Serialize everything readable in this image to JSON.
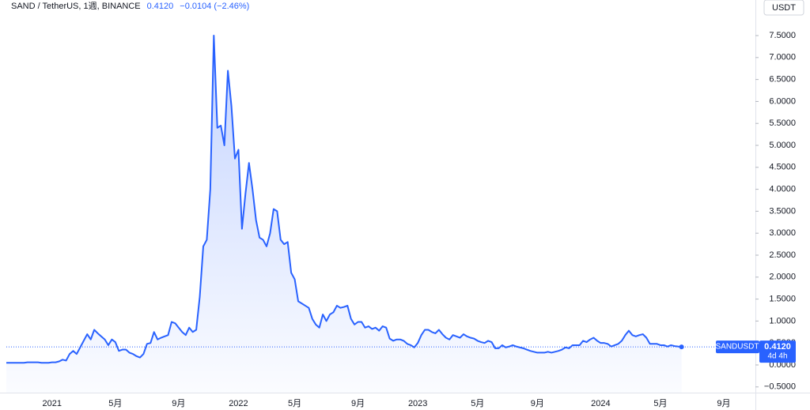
{
  "chart_data": {
    "type": "area",
    "title": "SAND / TetherUS, 1週, BINANCE",
    "last_price": "0.4120",
    "change": "−0.0104 (−2.46%)",
    "currency": "USDT",
    "countdown": "4d 4h",
    "grid": false,
    "series": [
      {
        "name": "SANDUSDT",
        "color": "#2962ff",
        "values": [
          0.05,
          0.05,
          0.05,
          0.05,
          0.05,
          0.05,
          0.06,
          0.06,
          0.06,
          0.06,
          0.05,
          0.05,
          0.05,
          0.06,
          0.06,
          0.08,
          0.12,
          0.1,
          0.25,
          0.32,
          0.25,
          0.4,
          0.55,
          0.7,
          0.58,
          0.8,
          0.72,
          0.65,
          0.58,
          0.45,
          0.58,
          0.52,
          0.32,
          0.35,
          0.35,
          0.28,
          0.25,
          0.2,
          0.17,
          0.25,
          0.48,
          0.5,
          0.75,
          0.58,
          0.62,
          0.65,
          0.68,
          0.98,
          0.95,
          0.85,
          0.75,
          0.68,
          0.85,
          0.75,
          0.8,
          1.55,
          2.7,
          2.85,
          4.0,
          7.5,
          5.4,
          5.45,
          5.0,
          6.7,
          5.9,
          4.7,
          4.9,
          3.1,
          3.9,
          4.6,
          4.0,
          3.3,
          2.9,
          2.85,
          2.7,
          3.0,
          3.55,
          3.5,
          2.85,
          2.75,
          2.8,
          2.1,
          1.95,
          1.45,
          1.4,
          1.35,
          1.3,
          1.05,
          0.92,
          0.85,
          1.15,
          1.0,
          1.15,
          1.2,
          1.35,
          1.3,
          1.32,
          1.35,
          1.05,
          0.92,
          0.98,
          0.98,
          0.85,
          0.88,
          0.82,
          0.85,
          0.78,
          0.88,
          0.85,
          0.6,
          0.55,
          0.58,
          0.58,
          0.55,
          0.48,
          0.45,
          0.4,
          0.5,
          0.68,
          0.8,
          0.8,
          0.75,
          0.72,
          0.8,
          0.7,
          0.62,
          0.58,
          0.68,
          0.65,
          0.62,
          0.7,
          0.65,
          0.62,
          0.6,
          0.55,
          0.52,
          0.5,
          0.55,
          0.52,
          0.38,
          0.38,
          0.45,
          0.4,
          0.42,
          0.45,
          0.42,
          0.4,
          0.38,
          0.35,
          0.32,
          0.3,
          0.28,
          0.28,
          0.28,
          0.3,
          0.28,
          0.3,
          0.32,
          0.35,
          0.4,
          0.38,
          0.45,
          0.45,
          0.45,
          0.55,
          0.52,
          0.58,
          0.62,
          0.55,
          0.5,
          0.5,
          0.48,
          0.42,
          0.45,
          0.48,
          0.55,
          0.68,
          0.78,
          0.68,
          0.65,
          0.68,
          0.7,
          0.62,
          0.48,
          0.48,
          0.48,
          0.45,
          0.45,
          0.42,
          0.45,
          0.43,
          0.42,
          0.412,
          null,
          null,
          null,
          null,
          null,
          null,
          null,
          null,
          null,
          null,
          null,
          null,
          null,
          null,
          null,
          null,
          null,
          null,
          null,
          null
        ]
      }
    ],
    "categories": [
      null,
      null,
      null,
      null,
      null,
      null,
      null,
      null,
      null,
      null,
      null,
      null,
      null,
      "2021",
      null,
      null,
      null,
      null,
      null,
      null,
      null,
      null,
      null,
      null,
      null,
      null,
      null,
      null,
      null,
      null,
      null,
      "5月",
      null,
      null,
      null,
      null,
      null,
      null,
      null,
      null,
      null,
      null,
      null,
      null,
      null,
      null,
      null,
      null,
      null,
      "9月",
      null,
      null,
      null,
      null,
      null,
      null,
      null,
      null,
      null,
      null,
      null,
      null,
      null,
      null,
      null,
      null,
      "2022",
      null,
      null,
      null,
      null,
      null,
      null,
      null,
      null,
      null,
      null,
      null,
      null,
      null,
      null,
      null,
      "5月",
      null,
      null,
      null,
      null,
      null,
      null,
      null,
      null,
      null,
      null,
      null,
      null,
      null,
      null,
      null,
      null,
      null,
      "9月",
      null,
      null,
      null,
      null,
      null,
      null,
      null,
      null,
      null,
      null,
      null,
      null,
      null,
      null,
      null,
      null,
      "2023",
      null,
      null,
      null,
      null,
      null,
      null,
      null,
      null,
      null,
      null,
      null,
      null,
      null,
      null,
      null,
      null,
      "5月",
      null,
      null,
      null,
      null,
      null,
      null,
      null,
      null,
      null,
      null,
      null,
      null,
      null,
      null,
      null,
      null,
      "9月",
      null,
      null,
      null,
      null,
      null,
      null,
      null,
      null,
      null,
      null,
      null,
      null,
      null,
      null,
      null,
      null,
      null,
      "2024",
      null,
      null,
      null,
      null,
      null,
      null,
      null,
      null,
      null,
      null,
      null,
      null,
      null,
      null,
      null,
      null,
      "5月",
      null,
      null,
      null,
      null,
      null,
      null,
      null,
      null,
      null,
      null,
      null,
      null,
      null,
      null,
      null,
      null,
      null,
      "9月",
      null,
      null,
      null,
      null,
      null,
      null,
      null,
      null
    ],
    "ylim": [
      -0.63,
      8.31
    ],
    "yticks": [
      {
        "value": -0.5,
        "label": "−0.5000"
      },
      {
        "value": 0,
        "label": "0.0000"
      },
      {
        "value": 0.5,
        "label": "0.5000"
      },
      {
        "value": 1,
        "label": "1.0000"
      },
      {
        "value": 1.5,
        "label": "1.5000"
      },
      {
        "value": 2,
        "label": "2.0000"
      },
      {
        "value": 2.5,
        "label": "2.5000"
      },
      {
        "value": 3,
        "label": "3.0000"
      },
      {
        "value": 3.5,
        "label": "3.5000"
      },
      {
        "value": 4,
        "label": "4.0000"
      },
      {
        "value": 4.5,
        "label": "4.5000"
      },
      {
        "value": 5,
        "label": "5.0000"
      },
      {
        "value": 5.5,
        "label": "5.5000"
      },
      {
        "value": 6,
        "label": "6.0000"
      },
      {
        "value": 6.5,
        "label": "6.5000"
      },
      {
        "value": 7,
        "label": "7.0000"
      },
      {
        "value": 7.5,
        "label": "7.5000"
      }
    ]
  }
}
